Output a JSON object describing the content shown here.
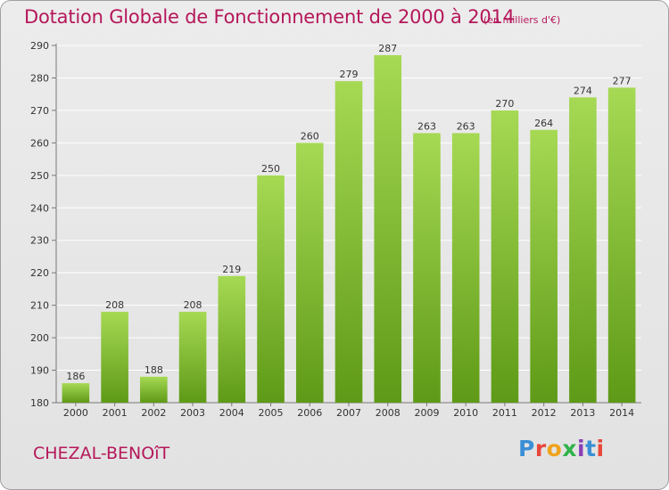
{
  "header": {
    "title": "Dotation Globale de Fonctionnement de 2000 à 2014",
    "unit": "(en milliers d'€)"
  },
  "footer": {
    "commune": "CHEZAL-BENOîT",
    "logo": "Proxiti",
    "logo_colors": [
      "#3a8fd6",
      "#e8473a",
      "#f0a21c",
      "#2fb34a",
      "#8a3fb8",
      "#3a8fd6",
      "#e8473a"
    ]
  },
  "colors": {
    "bar_light": "#9fd24c",
    "bar_dark": "#5e9a17",
    "text_accent": "#b5175a",
    "grid": "#ffffff"
  },
  "chart_data": {
    "type": "bar",
    "title": "Dotation Globale de Fonctionnement de 2000 à 2014",
    "xlabel": "",
    "ylabel": "",
    "categories": [
      "2000",
      "2001",
      "2002",
      "2003",
      "2004",
      "2005",
      "2006",
      "2007",
      "2008",
      "2009",
      "2010",
      "2011",
      "2012",
      "2013",
      "2014"
    ],
    "values": [
      186,
      208,
      188,
      208,
      219,
      250,
      260,
      279,
      287,
      263,
      263,
      270,
      264,
      274,
      277
    ],
    "ylim": [
      180,
      290
    ],
    "yticks": [
      180,
      190,
      200,
      210,
      220,
      230,
      240,
      250,
      260,
      270,
      280,
      290
    ],
    "grid": true,
    "data_labels": true
  }
}
